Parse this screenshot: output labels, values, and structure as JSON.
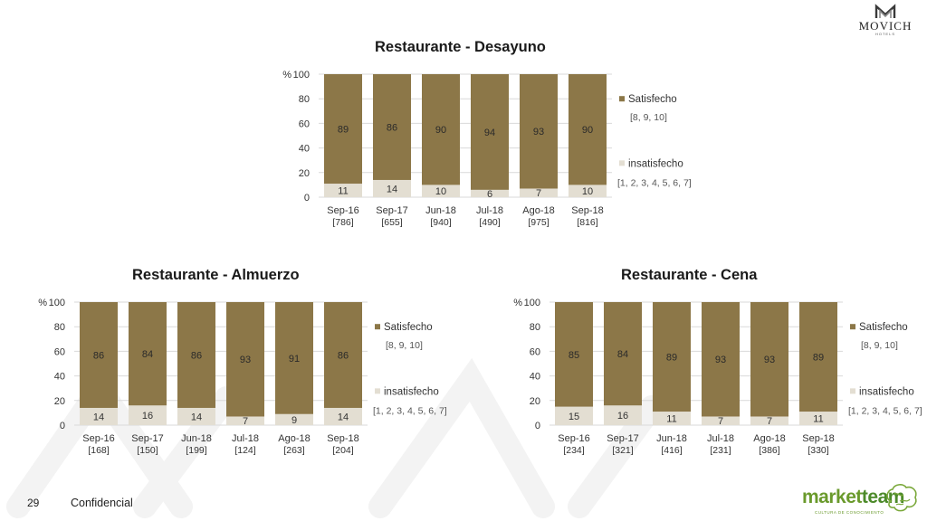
{
  "brand": {
    "hotel_logo_text": "MOVICH",
    "hotel_logo_subtext": "HOTELS",
    "research_logo_text_1": "market",
    "research_logo_text_2": "team",
    "research_logo_tagline": "CULTURA DE CONOCIMIENTO"
  },
  "footer": {
    "page_number": "29",
    "confidential_label": "Confidencial"
  },
  "colors": {
    "satisfecho": "#8c7748",
    "insatisfecho": "#e3ded2",
    "grid": "#d9d9d9",
    "axis_text": "#333333",
    "legend_text": "#555555"
  },
  "chart_data": [
    {
      "type": "bar",
      "stacked": true,
      "title": "Restaurante - Desayuno",
      "unit_label": "%",
      "ylim": [
        0,
        100
      ],
      "yticks": [
        "0",
        "20",
        "40",
        "60",
        "80",
        "100"
      ],
      "categories": [
        "Sep-16",
        "Sep-17",
        "Jun-18",
        "Jul-18",
        "Ago-18",
        "Sep-18"
      ],
      "category_bases": [
        "[786]",
        "[655]",
        "[940]",
        "[490]",
        "[975]",
        "[816]"
      ],
      "series": [
        {
          "name": "insatisfecho",
          "scale_note": "[1, 2, 3, 4, 5, 6, 7]",
          "values": [
            11,
            14,
            10,
            6,
            7,
            10
          ]
        },
        {
          "name": "Satisfecho",
          "scale_note": "[8, 9, 10]",
          "values": [
            89,
            86,
            90,
            94,
            93,
            90
          ]
        }
      ],
      "grid": true,
      "legend": "right"
    },
    {
      "type": "bar",
      "stacked": true,
      "title": "Restaurante - Almuerzo",
      "unit_label": "%",
      "ylim": [
        0,
        100
      ],
      "yticks": [
        "0",
        "20",
        "40",
        "60",
        "80",
        "100"
      ],
      "categories": [
        "Sep-16",
        "Sep-17",
        "Jun-18",
        "Jul-18",
        "Ago-18",
        "Sep-18"
      ],
      "category_bases": [
        "[168]",
        "[150]",
        "[199]",
        "[124]",
        "[263]",
        "[204]"
      ],
      "series": [
        {
          "name": "insatisfecho",
          "scale_note": "[1, 2, 3, 4, 5, 6, 7]",
          "values": [
            14,
            16,
            14,
            7,
            9,
            14
          ]
        },
        {
          "name": "Satisfecho",
          "scale_note": "[8, 9, 10]",
          "values": [
            86,
            84,
            86,
            93,
            91,
            86
          ]
        }
      ],
      "grid": true,
      "legend": "right"
    },
    {
      "type": "bar",
      "stacked": true,
      "title": "Restaurante - Cena",
      "unit_label": "%",
      "ylim": [
        0,
        100
      ],
      "yticks": [
        "0",
        "20",
        "40",
        "60",
        "80",
        "100"
      ],
      "categories": [
        "Sep-16",
        "Sep-17",
        "Jun-18",
        "Jul-18",
        "Ago-18",
        "Sep-18"
      ],
      "category_bases": [
        "[234]",
        "[321]",
        "[416]",
        "[231]",
        "[386]",
        "[330]"
      ],
      "series": [
        {
          "name": "insatisfecho",
          "scale_note": "[1, 2, 3, 4, 5, 6, 7]",
          "values": [
            15,
            16,
            11,
            7,
            7,
            11
          ]
        },
        {
          "name": "Satisfecho",
          "scale_note": "[8, 9, 10]",
          "values": [
            85,
            84,
            89,
            93,
            93,
            89
          ]
        }
      ],
      "grid": true,
      "legend": "right"
    }
  ]
}
